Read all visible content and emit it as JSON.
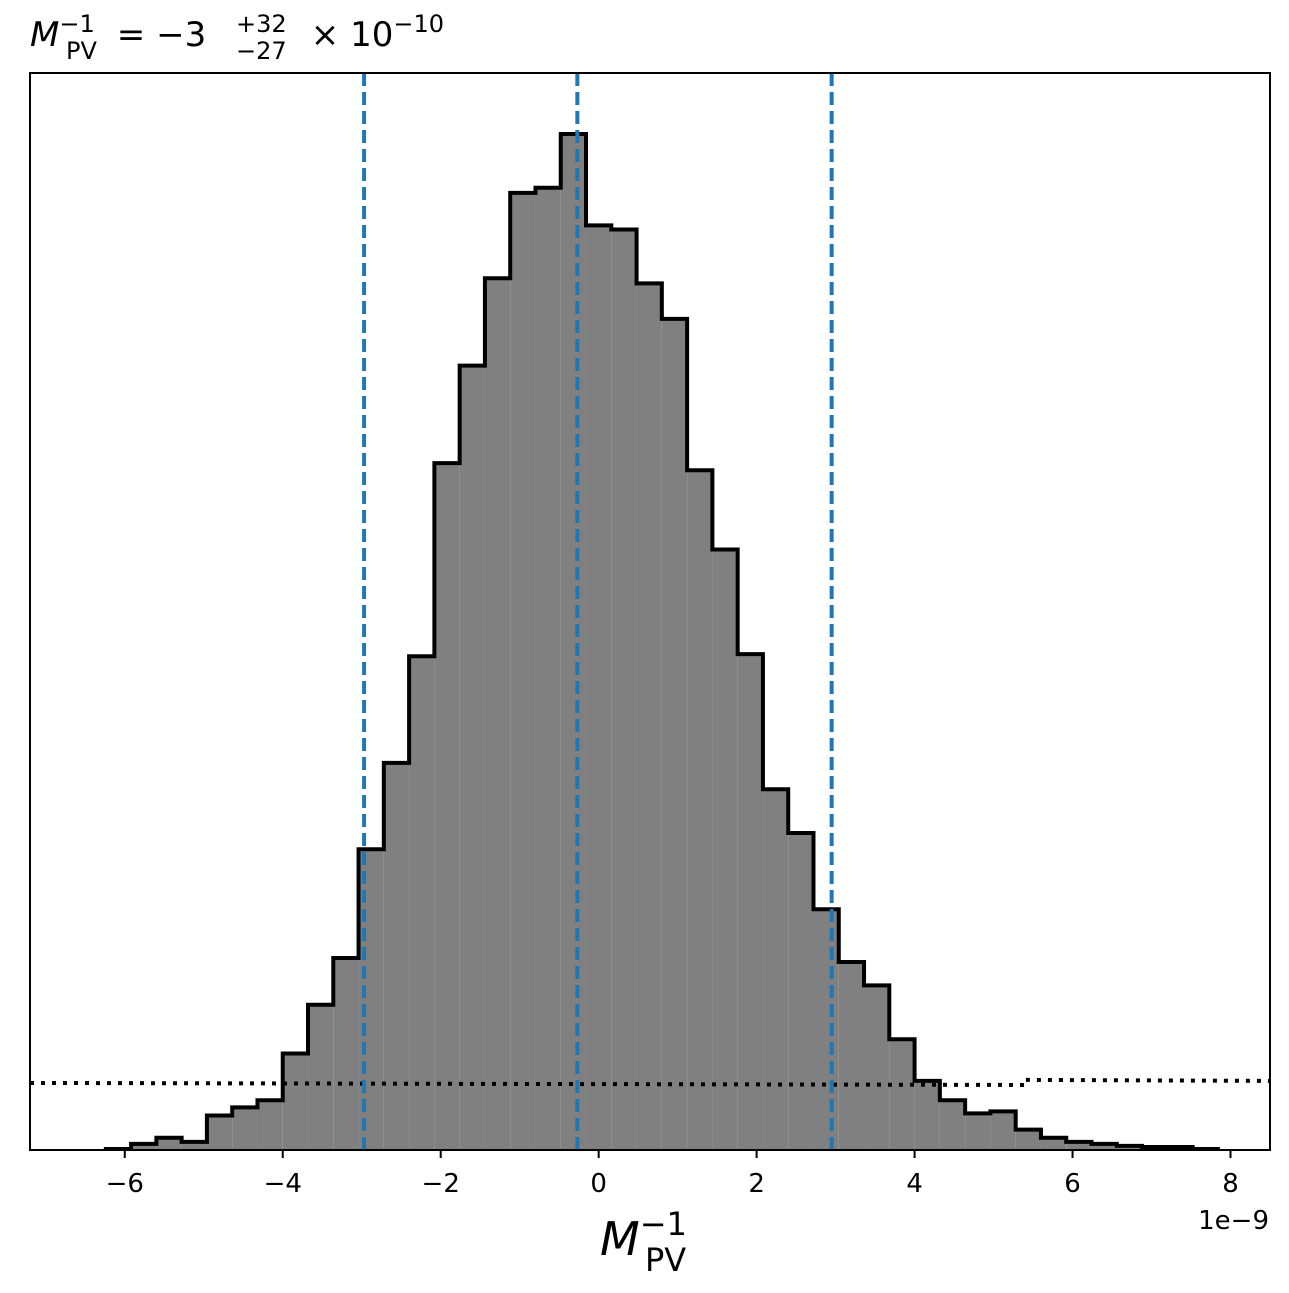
{
  "chart_data": {
    "type": "bar",
    "title": {
      "base": "M",
      "sub": "PV",
      "sup": "−1",
      "rest": " = −3",
      "upper": "+32",
      "lower": "−27",
      "tail": " × 10",
      "exp": "−10"
    },
    "xlabel": {
      "base": "M",
      "sub": "PV",
      "sup": "−1"
    },
    "offset_text": "1e−9",
    "x_unit_scale": 1e-09,
    "xlim": [
      -7.2,
      8.5
    ],
    "ylim": [
      0,
      1.06
    ],
    "xticks": [
      {
        "value": -6,
        "label": "−6"
      },
      {
        "value": -4,
        "label": "−4"
      },
      {
        "value": -2,
        "label": "−2"
      },
      {
        "value": 0,
        "label": "0"
      },
      {
        "value": 2,
        "label": "2"
      },
      {
        "value": 4,
        "label": "4"
      },
      {
        "value": 6,
        "label": "6"
      },
      {
        "value": 8,
        "label": "8"
      }
    ],
    "bins_edges": [
      -6.24,
      -5.92,
      -5.6,
      -5.28,
      -4.96,
      -4.64,
      -4.32,
      -4.0,
      -3.68,
      -3.36,
      -3.04,
      -2.72,
      -2.4,
      -2.08,
      -1.76,
      -1.44,
      -1.12,
      -0.8,
      -0.48,
      -0.16,
      0.16,
      0.48,
      0.8,
      1.12,
      1.44,
      1.76,
      2.08,
      2.4,
      2.72,
      3.04,
      3.36,
      3.68,
      4.0,
      4.32,
      4.64,
      4.96,
      5.28,
      5.6,
      5.92,
      6.24,
      6.56,
      6.88,
      7.2,
      7.52,
      7.84
    ],
    "counts": [
      0.001,
      0.006,
      0.012,
      0.008,
      0.034,
      0.042,
      0.049,
      0.095,
      0.143,
      0.189,
      0.296,
      0.381,
      0.486,
      0.676,
      0.772,
      0.858,
      0.942,
      0.947,
      1.0,
      0.91,
      0.906,
      0.853,
      0.818,
      0.669,
      0.591,
      0.488,
      0.355,
      0.312,
      0.237,
      0.185,
      0.162,
      0.109,
      0.068,
      0.049,
      0.036,
      0.038,
      0.02,
      0.012,
      0.008,
      0.006,
      0.004,
      0.003,
      0.003,
      0.001
    ],
    "vlines": [
      {
        "x": -2.97,
        "style": "dashed",
        "color": "#1f77b4"
      },
      {
        "x": -0.27,
        "style": "dashed",
        "color": "#1f77b4"
      },
      {
        "x": 2.95,
        "style": "dashed",
        "color": "#1f77b4"
      }
    ],
    "prior_line": {
      "style": "dotted",
      "color": "#000000",
      "x": [
        -7.2,
        5.4,
        5.4,
        8.5
      ],
      "y": [
        0.066,
        0.064,
        0.069,
        0.068
      ]
    },
    "colors": {
      "fill": "#808080",
      "edge": "#000000",
      "axes": "#000000"
    },
    "grid": false,
    "yticks_visible": false
  }
}
